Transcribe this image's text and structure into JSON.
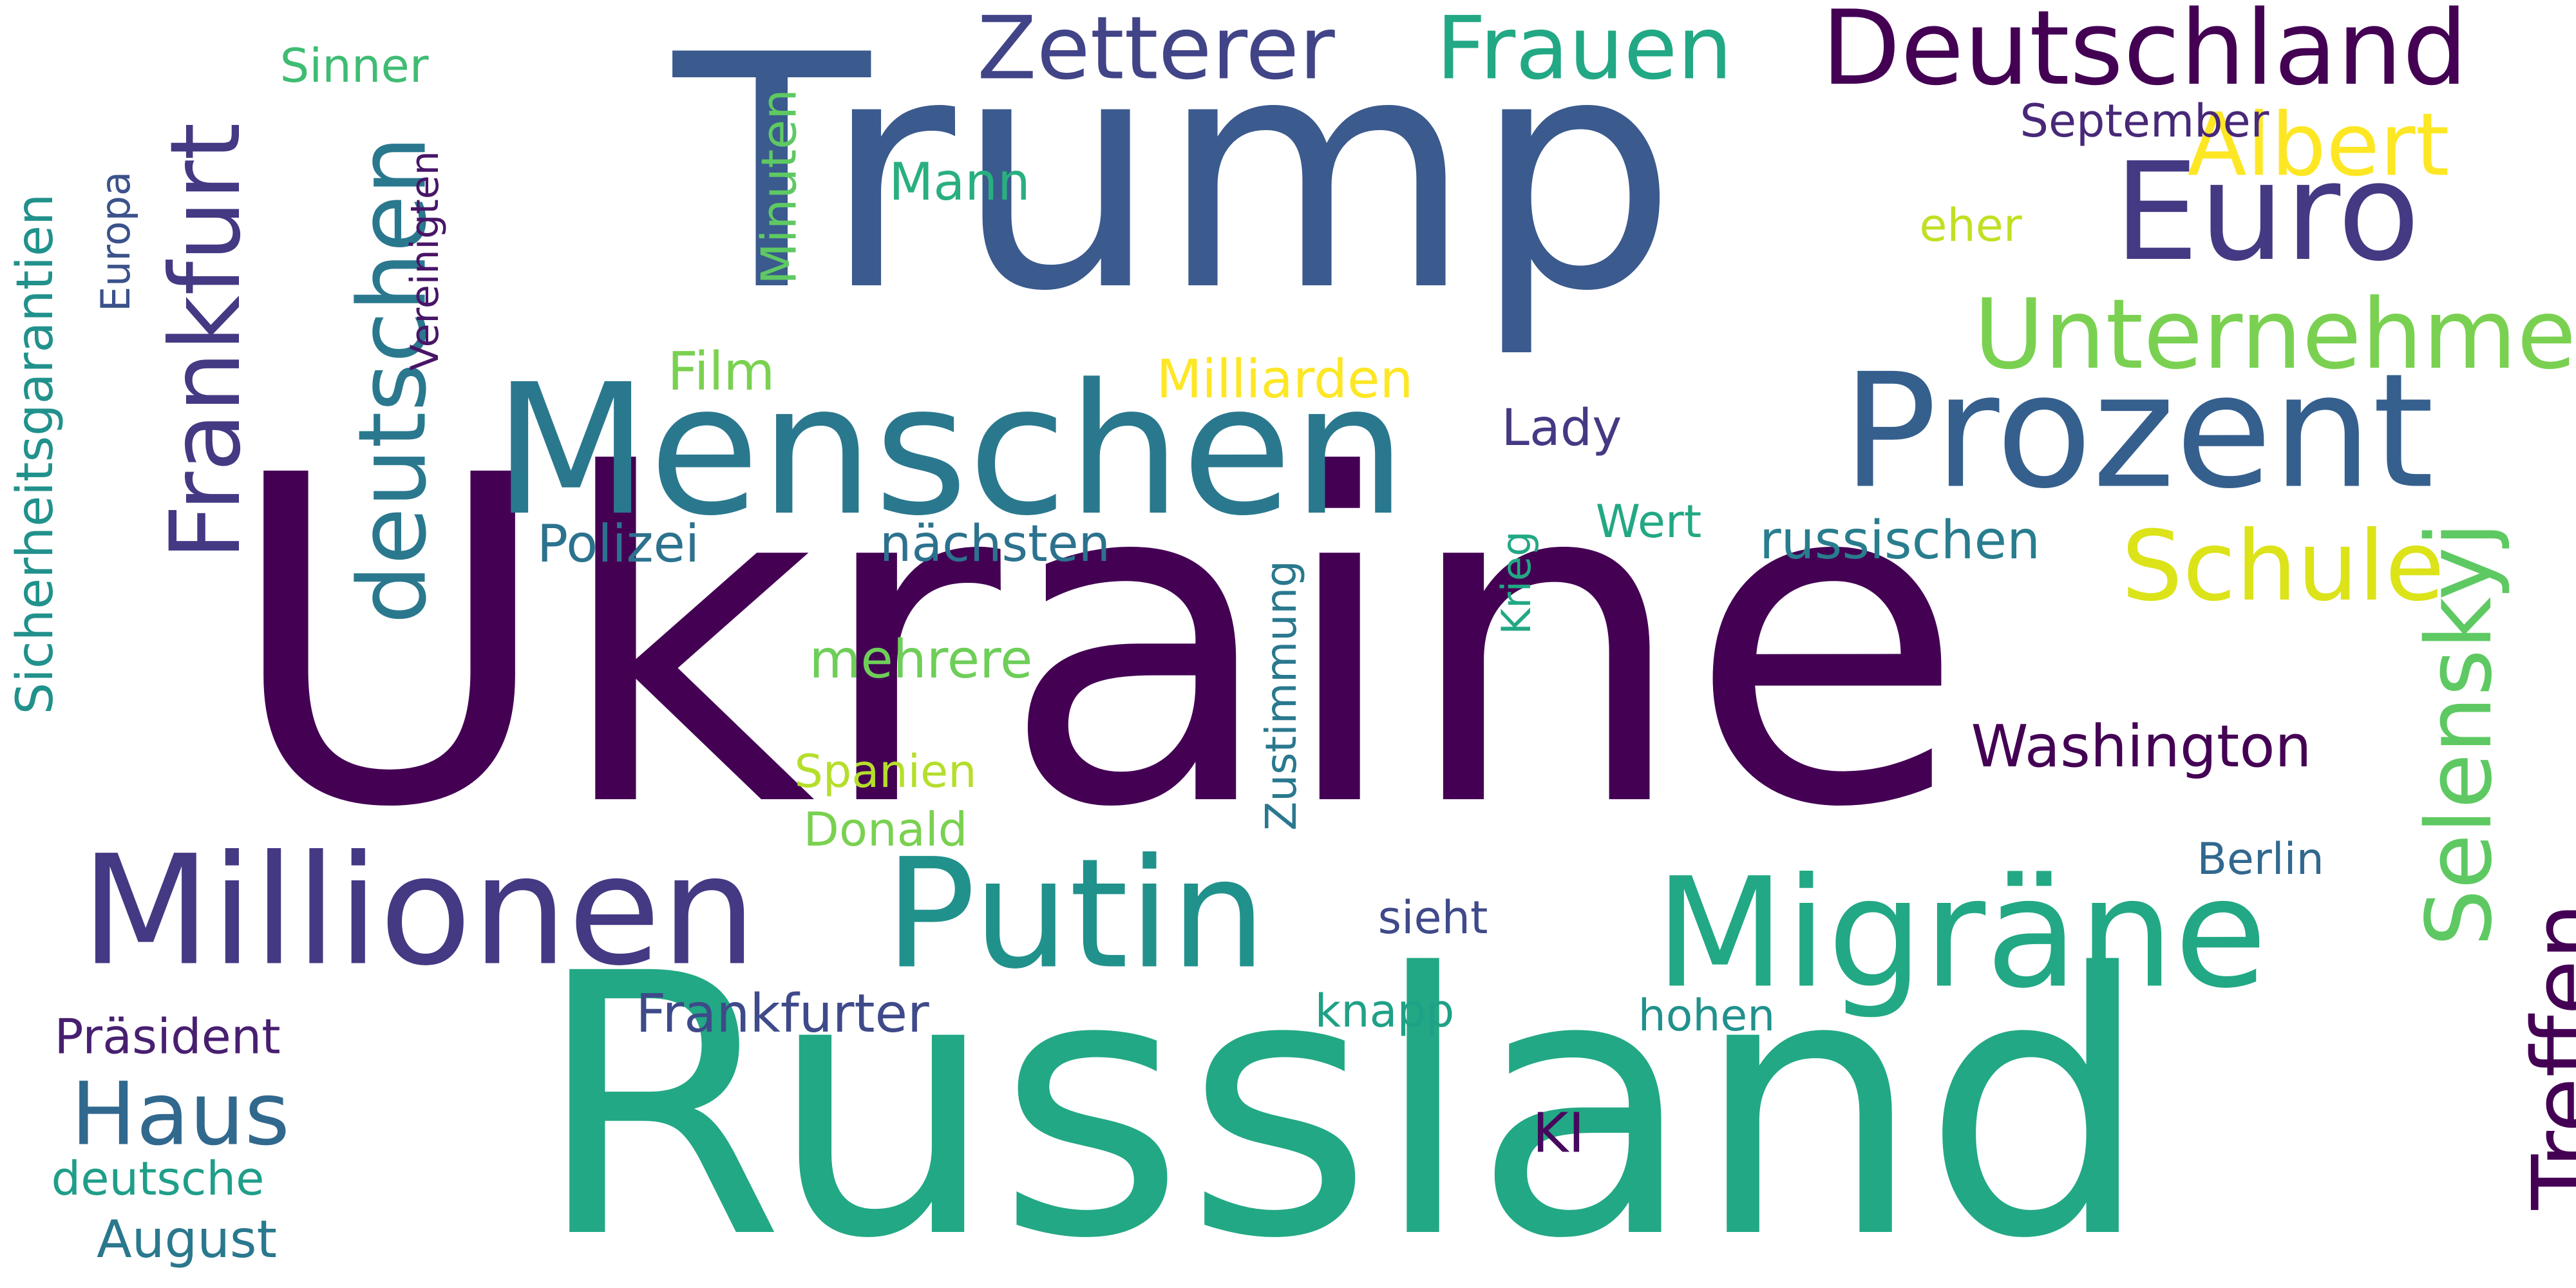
{
  "word_cloud": {
    "background": "#ffffff",
    "words": [
      {
        "id": "ukraine",
        "text": "Ukraine",
        "orientation": "horizontal",
        "color": "#440154"
      },
      {
        "id": "trump",
        "text": "Trump",
        "orientation": "horizontal",
        "color": "#3b5a8e"
      },
      {
        "id": "russland",
        "text": "Russland",
        "orientation": "horizontal",
        "color": "#22a884"
      },
      {
        "id": "menschen",
        "text": "Menschen",
        "orientation": "horizontal",
        "color": "#2a788e"
      },
      {
        "id": "prozent",
        "text": "Prozent",
        "orientation": "horizontal",
        "color": "#355f8d"
      },
      {
        "id": "migraene",
        "text": "Migräne",
        "orientation": "horizontal",
        "color": "#22a884"
      },
      {
        "id": "putin",
        "text": "Putin",
        "orientation": "horizontal",
        "color": "#21918c"
      },
      {
        "id": "millionen",
        "text": "Millionen",
        "orientation": "horizontal",
        "color": "#443983"
      },
      {
        "id": "euro",
        "text": "Euro",
        "orientation": "horizontal",
        "color": "#443983"
      },
      {
        "id": "deutschland",
        "text": "Deutschland",
        "orientation": "horizontal",
        "color": "#440154"
      },
      {
        "id": "frankfurt",
        "text": "Frankfurt",
        "orientation": "vertical",
        "color": "#443983"
      },
      {
        "id": "deutschen",
        "text": "deutschen",
        "orientation": "vertical",
        "color": "#2a788e"
      },
      {
        "id": "unternehmen",
        "text": "Unternehmen",
        "orientation": "horizontal",
        "color": "#7ad151"
      },
      {
        "id": "schule",
        "text": "Schule",
        "orientation": "horizontal",
        "color": "#dce319"
      },
      {
        "id": "selenskyj",
        "text": "Selenskyj",
        "orientation": "vertical",
        "color": "#5ec962"
      },
      {
        "id": "treffen",
        "text": "Treffen",
        "orientation": "vertical",
        "color": "#440154"
      },
      {
        "id": "albert",
        "text": "Albert",
        "orientation": "horizontal",
        "color": "#fde725"
      },
      {
        "id": "frauen",
        "text": "Frauen",
        "orientation": "horizontal",
        "color": "#22a884"
      },
      {
        "id": "zetterer",
        "text": "Zetterer",
        "orientation": "horizontal",
        "color": "#414487"
      },
      {
        "id": "haus",
        "text": "Haus",
        "orientation": "horizontal",
        "color": "#31688e"
      },
      {
        "id": "washington",
        "text": "Washington",
        "orientation": "horizontal",
        "color": "#440154"
      },
      {
        "id": "sicherheitsgarantien",
        "text": "Sicherheitsgarantien",
        "orientation": "vertical",
        "color": "#21918c"
      },
      {
        "id": "russischen",
        "text": "russischen",
        "orientation": "horizontal",
        "color": "#287d8e"
      },
      {
        "id": "september",
        "text": "September",
        "orientation": "horizontal",
        "color": "#482878"
      },
      {
        "id": "frankfurter",
        "text": "Frankfurter",
        "orientation": "horizontal",
        "color": "#3e4a89"
      },
      {
        "id": "praesident",
        "text": "Präsident",
        "orientation": "horizontal",
        "color": "#481f70"
      },
      {
        "id": "deutsche",
        "text": "deutsche",
        "orientation": "horizontal",
        "color": "#1f9e89"
      },
      {
        "id": "august",
        "text": "August",
        "orientation": "horizontal",
        "color": "#2a788e"
      },
      {
        "id": "polizei",
        "text": "Polizei",
        "orientation": "horizontal",
        "color": "#2c728e"
      },
      {
        "id": "naechsten",
        "text": "nächsten",
        "orientation": "horizontal",
        "color": "#2c728e"
      },
      {
        "id": "mehrere",
        "text": "mehrere",
        "orientation": "horizontal",
        "color": "#6ece58"
      },
      {
        "id": "spanien",
        "text": "Spanien",
        "orientation": "horizontal",
        "color": "#b5de2b"
      },
      {
        "id": "donald",
        "text": "Donald",
        "orientation": "horizontal",
        "color": "#7ad151"
      },
      {
        "id": "film",
        "text": "Film",
        "orientation": "horizontal",
        "color": "#7ad151"
      },
      {
        "id": "milliarden",
        "text": "Milliarden",
        "orientation": "horizontal",
        "color": "#fde725"
      },
      {
        "id": "lady",
        "text": "Lady",
        "orientation": "horizontal",
        "color": "#443983"
      },
      {
        "id": "wert",
        "text": "Wert",
        "orientation": "horizontal",
        "color": "#22a884"
      },
      {
        "id": "krieg",
        "text": "Krieg",
        "orientation": "vertical",
        "color": "#22a884"
      },
      {
        "id": "zustimmung",
        "text": "Zustimmung",
        "orientation": "vertical",
        "color": "#2a788e"
      },
      {
        "id": "minuten",
        "text": "Minuten",
        "orientation": "vertical",
        "color": "#5ec962"
      },
      {
        "id": "vereinigten",
        "text": "Vereinigten",
        "orientation": "vertical",
        "color": "#481567"
      },
      {
        "id": "europa",
        "text": "Europa",
        "orientation": "vertical",
        "color": "#3b528b"
      },
      {
        "id": "sinner",
        "text": "Sinner",
        "orientation": "horizontal",
        "color": "#3fbc73"
      },
      {
        "id": "mann",
        "text": "Mann",
        "orientation": "horizontal",
        "color": "#29af7f"
      },
      {
        "id": "eher",
        "text": "eher",
        "orientation": "horizontal",
        "color": "#c2df23"
      },
      {
        "id": "berlin",
        "text": "Berlin",
        "orientation": "horizontal",
        "color": "#31688e"
      },
      {
        "id": "sieht",
        "text": "sieht",
        "orientation": "horizontal",
        "color": "#3e4a89"
      },
      {
        "id": "knapp",
        "text": "knapp",
        "orientation": "horizontal",
        "color": "#1fa187"
      },
      {
        "id": "hohen",
        "text": "hohen",
        "orientation": "horizontal",
        "color": "#21918c"
      },
      {
        "id": "ki",
        "text": "KI",
        "orientation": "horizontal",
        "color": "#46085c"
      }
    ]
  }
}
